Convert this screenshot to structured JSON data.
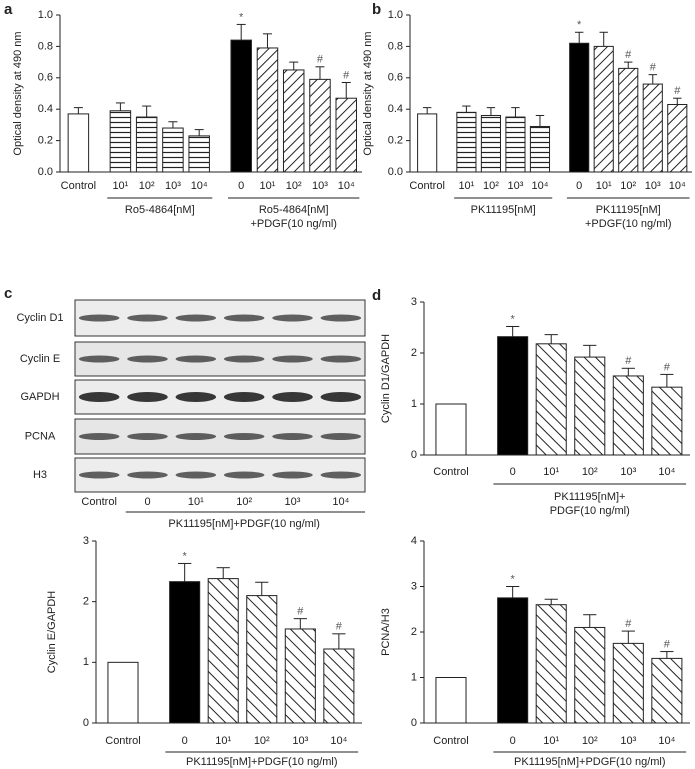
{
  "chart_data": [
    {
      "type": "bar",
      "panel_label": "a",
      "ylabel": "Optical density at 490 nm",
      "ylim": [
        0,
        1.0
      ],
      "yticks": [
        {
          "value": 0,
          "label": "0.0"
        },
        0.2,
        0.4,
        0.6,
        0.8,
        {
          "value": 1.0,
          "label": "1.0"
        }
      ],
      "groups": [
        {
          "categories": [
            "Control"
          ]
        },
        {
          "label": "Ro5-4864[nM]",
          "categories": [
            "10¹",
            "10²",
            "10³",
            "10⁴"
          ]
        },
        {
          "label": [
            "Ro5-4864[nM]",
            "+PDGF(10 ng/ml)"
          ],
          "categories": [
            "0",
            "10¹",
            "10²",
            "10³",
            "10⁴"
          ]
        }
      ],
      "values": [
        0.37,
        0.39,
        0.35,
        0.28,
        0.23,
        0.84,
        0.79,
        0.65,
        0.59,
        0.47
      ],
      "errors": [
        0.04,
        0.05,
        0.07,
        0.04,
        0.04,
        0.1,
        0.09,
        0.05,
        0.08,
        0.1
      ],
      "annotations": [
        null,
        null,
        null,
        null,
        null,
        "*",
        null,
        null,
        "#",
        "#"
      ],
      "patterns": [
        "open",
        "horizontal",
        "horizontal",
        "horizontal",
        "horizontal",
        "solid",
        "hatch-up",
        "hatch-up",
        "hatch-up",
        "hatch-up"
      ]
    },
    {
      "type": "bar",
      "panel_label": "b",
      "ylabel": "Optical density at 490 nm",
      "ylim": [
        0,
        1.0
      ],
      "yticks": [
        {
          "value": 0,
          "label": "0.0"
        },
        0.2,
        0.4,
        0.6,
        0.8,
        {
          "value": 1.0,
          "label": "1.0"
        }
      ],
      "groups": [
        {
          "categories": [
            "Control"
          ]
        },
        {
          "label": "PK11195[nM]",
          "categories": [
            "10¹",
            "10²",
            "10³",
            "10⁴"
          ]
        },
        {
          "label": [
            "PK11195[nM]",
            "+PDGF(10 ng/ml)"
          ],
          "categories": [
            "0",
            "10¹",
            "10²",
            "10³",
            "10⁴"
          ]
        }
      ],
      "values": [
        0.37,
        0.38,
        0.36,
        0.35,
        0.29,
        0.82,
        0.8,
        0.66,
        0.56,
        0.43
      ],
      "errors": [
        0.04,
        0.04,
        0.05,
        0.06,
        0.07,
        0.07,
        0.09,
        0.04,
        0.06,
        0.04
      ],
      "annotations": [
        null,
        null,
        null,
        null,
        null,
        "*",
        null,
        "#",
        "#",
        "#"
      ],
      "patterns": [
        "open",
        "horizontal",
        "horizontal",
        "horizontal",
        "horizontal",
        "solid",
        "hatch-up",
        "hatch-up",
        "hatch-up",
        "hatch-up"
      ]
    },
    {
      "type": "bar",
      "panel_label": "d",
      "ylabel": "Cyclin D1/GAPDH",
      "ylim": [
        0,
        3
      ],
      "yticks": [
        0,
        1,
        2,
        3
      ],
      "groups": [
        {
          "categories": [
            "Control"
          ]
        },
        {
          "label": [
            "PK11195[nM]+",
            "PDGF(10 ng/ml)"
          ],
          "categories": [
            "0",
            "10¹",
            "10²",
            "10³",
            "10⁴"
          ]
        }
      ],
      "values": [
        1.0,
        2.32,
        2.18,
        1.92,
        1.55,
        1.33
      ],
      "errors": [
        null,
        0.2,
        0.18,
        0.23,
        0.15,
        0.25
      ],
      "annotations": [
        null,
        "*",
        null,
        null,
        "#",
        "#"
      ],
      "patterns": [
        "open",
        "solid",
        "hatch-down",
        "hatch-down",
        "hatch-down",
        "hatch-down"
      ]
    },
    {
      "type": "bar",
      "ylabel": "Cyclin E/GAPDH",
      "ylim": [
        0,
        3
      ],
      "yticks": [
        0,
        1,
        2,
        3
      ],
      "groups": [
        {
          "categories": [
            "Control"
          ]
        },
        {
          "label": "PK11195[nM]+PDGF(10 ng/ml)",
          "categories": [
            "0",
            "10¹",
            "10²",
            "10³",
            "10⁴"
          ]
        }
      ],
      "values": [
        1.0,
        2.33,
        2.38,
        2.1,
        1.55,
        1.22
      ],
      "errors": [
        null,
        0.3,
        0.18,
        0.22,
        0.17,
        0.25
      ],
      "annotations": [
        null,
        "*",
        null,
        null,
        "#",
        "#"
      ],
      "patterns": [
        "open",
        "solid",
        "hatch-down",
        "hatch-down",
        "hatch-down",
        "hatch-down"
      ]
    },
    {
      "type": "bar",
      "ylabel": "PCNA/H3",
      "ylim": [
        0,
        4
      ],
      "yticks": [
        0,
        1,
        2,
        3,
        4
      ],
      "groups": [
        {
          "categories": [
            "Control"
          ]
        },
        {
          "label": "PK11195[nM]+PDGF(10 ng/ml)",
          "categories": [
            "0",
            "10¹",
            "10²",
            "10³",
            "10⁴"
          ]
        }
      ],
      "values": [
        1.0,
        2.75,
        2.6,
        2.1,
        1.75,
        1.42
      ],
      "errors": [
        null,
        0.25,
        0.12,
        0.28,
        0.27,
        0.15
      ],
      "annotations": [
        null,
        "*",
        null,
        null,
        "#",
        "#"
      ],
      "patterns": [
        "open",
        "solid",
        "hatch-down",
        "hatch-down",
        "hatch-down",
        "hatch-down"
      ]
    }
  ],
  "blot": {
    "panel_label": "c",
    "rows": [
      "Cyclin D1",
      "Cyclin E",
      "GAPDH",
      "PCNA",
      "H3"
    ],
    "lanes": [
      "Control",
      "0",
      "10¹",
      "10²",
      "10³",
      "10⁴"
    ],
    "group_label": "PK11195[nM]+PDGF(10 ng/ml)"
  }
}
